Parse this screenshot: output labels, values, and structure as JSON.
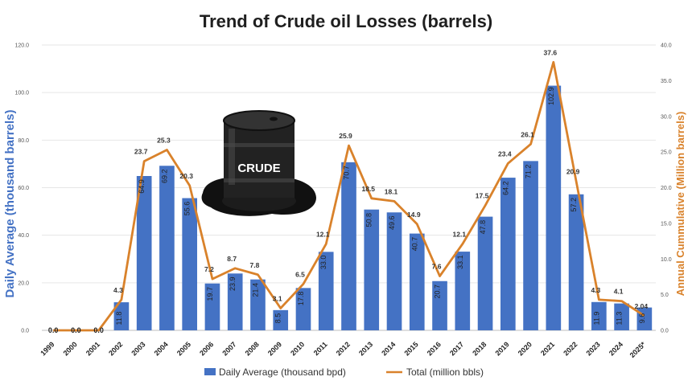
{
  "chart_data": {
    "type": "bar",
    "title": "Trend of Crude oil Losses (barrels)",
    "categories": [
      "1999",
      "2000",
      "2001",
      "2002",
      "2003",
      "2004",
      "2005",
      "2006",
      "2007",
      "2008",
      "2009",
      "2010",
      "2011",
      "2012",
      "2013",
      "2014",
      "2015",
      "2016",
      "2017",
      "2018",
      "2019",
      "2020",
      "2021",
      "2022",
      "2023",
      "2024",
      "2025*"
    ],
    "series": [
      {
        "name": "Daily Average (thousand bpd)",
        "type": "bar",
        "axis": "left",
        "color": "#4472c4",
        "values": [
          0.0,
          0.0,
          0.0,
          11.8,
          64.9,
          69.2,
          55.6,
          19.7,
          23.9,
          21.4,
          8.5,
          17.8,
          33.0,
          70.7,
          50.8,
          49.6,
          40.7,
          20.7,
          33.1,
          47.8,
          64.2,
          71.2,
          102.9,
          57.2,
          11.9,
          11.3,
          9.6
        ],
        "labels": [
          "0.0",
          "0.0",
          "0.0",
          "11.8",
          "64.9",
          "69.2",
          "55.6",
          "19.7",
          "23.9",
          "21.4",
          "8.5",
          "17.8",
          "33.0",
          "70.7",
          "50.8",
          "49.6",
          "40.7",
          "20.7",
          "33.1",
          "47.8",
          "64.2",
          "71.2",
          "102.9",
          "57.2",
          "11.9",
          "11.3",
          "9.6"
        ]
      },
      {
        "name": "Total (million bbls)",
        "type": "line",
        "axis": "right",
        "color": "#d9822b",
        "values": [
          0.0,
          0.0,
          0.0,
          4.3,
          23.7,
          25.3,
          20.3,
          7.2,
          8.7,
          7.8,
          3.1,
          6.5,
          12.1,
          25.9,
          18.5,
          18.1,
          14.9,
          7.6,
          12.1,
          17.5,
          23.4,
          26.1,
          37.6,
          20.9,
          4.3,
          4.1,
          2.04
        ],
        "labels": [
          "",
          "",
          "",
          "4.3",
          "23.7",
          "25.3",
          "20.3",
          "7.2",
          "8.7",
          "7.8",
          "3.1",
          "6.5",
          "12.1",
          "25.9",
          "18.5",
          "18.1",
          "14.9",
          "7.6",
          "12.1",
          "17.5",
          "23.4",
          "26.1",
          "37.6",
          "20.9",
          "4.3",
          "4.1",
          "2.04"
        ]
      }
    ],
    "ylabel_left": "Daily Average (thousand barrels)",
    "ylabel_right": "Annual Cummulative (Million barrels)",
    "ylim_left": [
      0,
      120
    ],
    "ylim_right": [
      0,
      40
    ],
    "yticks_left": [
      "0.0",
      "20.0",
      "40.0",
      "60.0",
      "80.0",
      "100.0",
      "120.0"
    ],
    "yticks_right": [
      "0.0",
      "5.0",
      "10.0",
      "15.0",
      "20.0",
      "25.0",
      "30.0",
      "35.0",
      "40.0"
    ],
    "grid": true,
    "legend_position": "bottom",
    "image_label": "CRUDE"
  }
}
